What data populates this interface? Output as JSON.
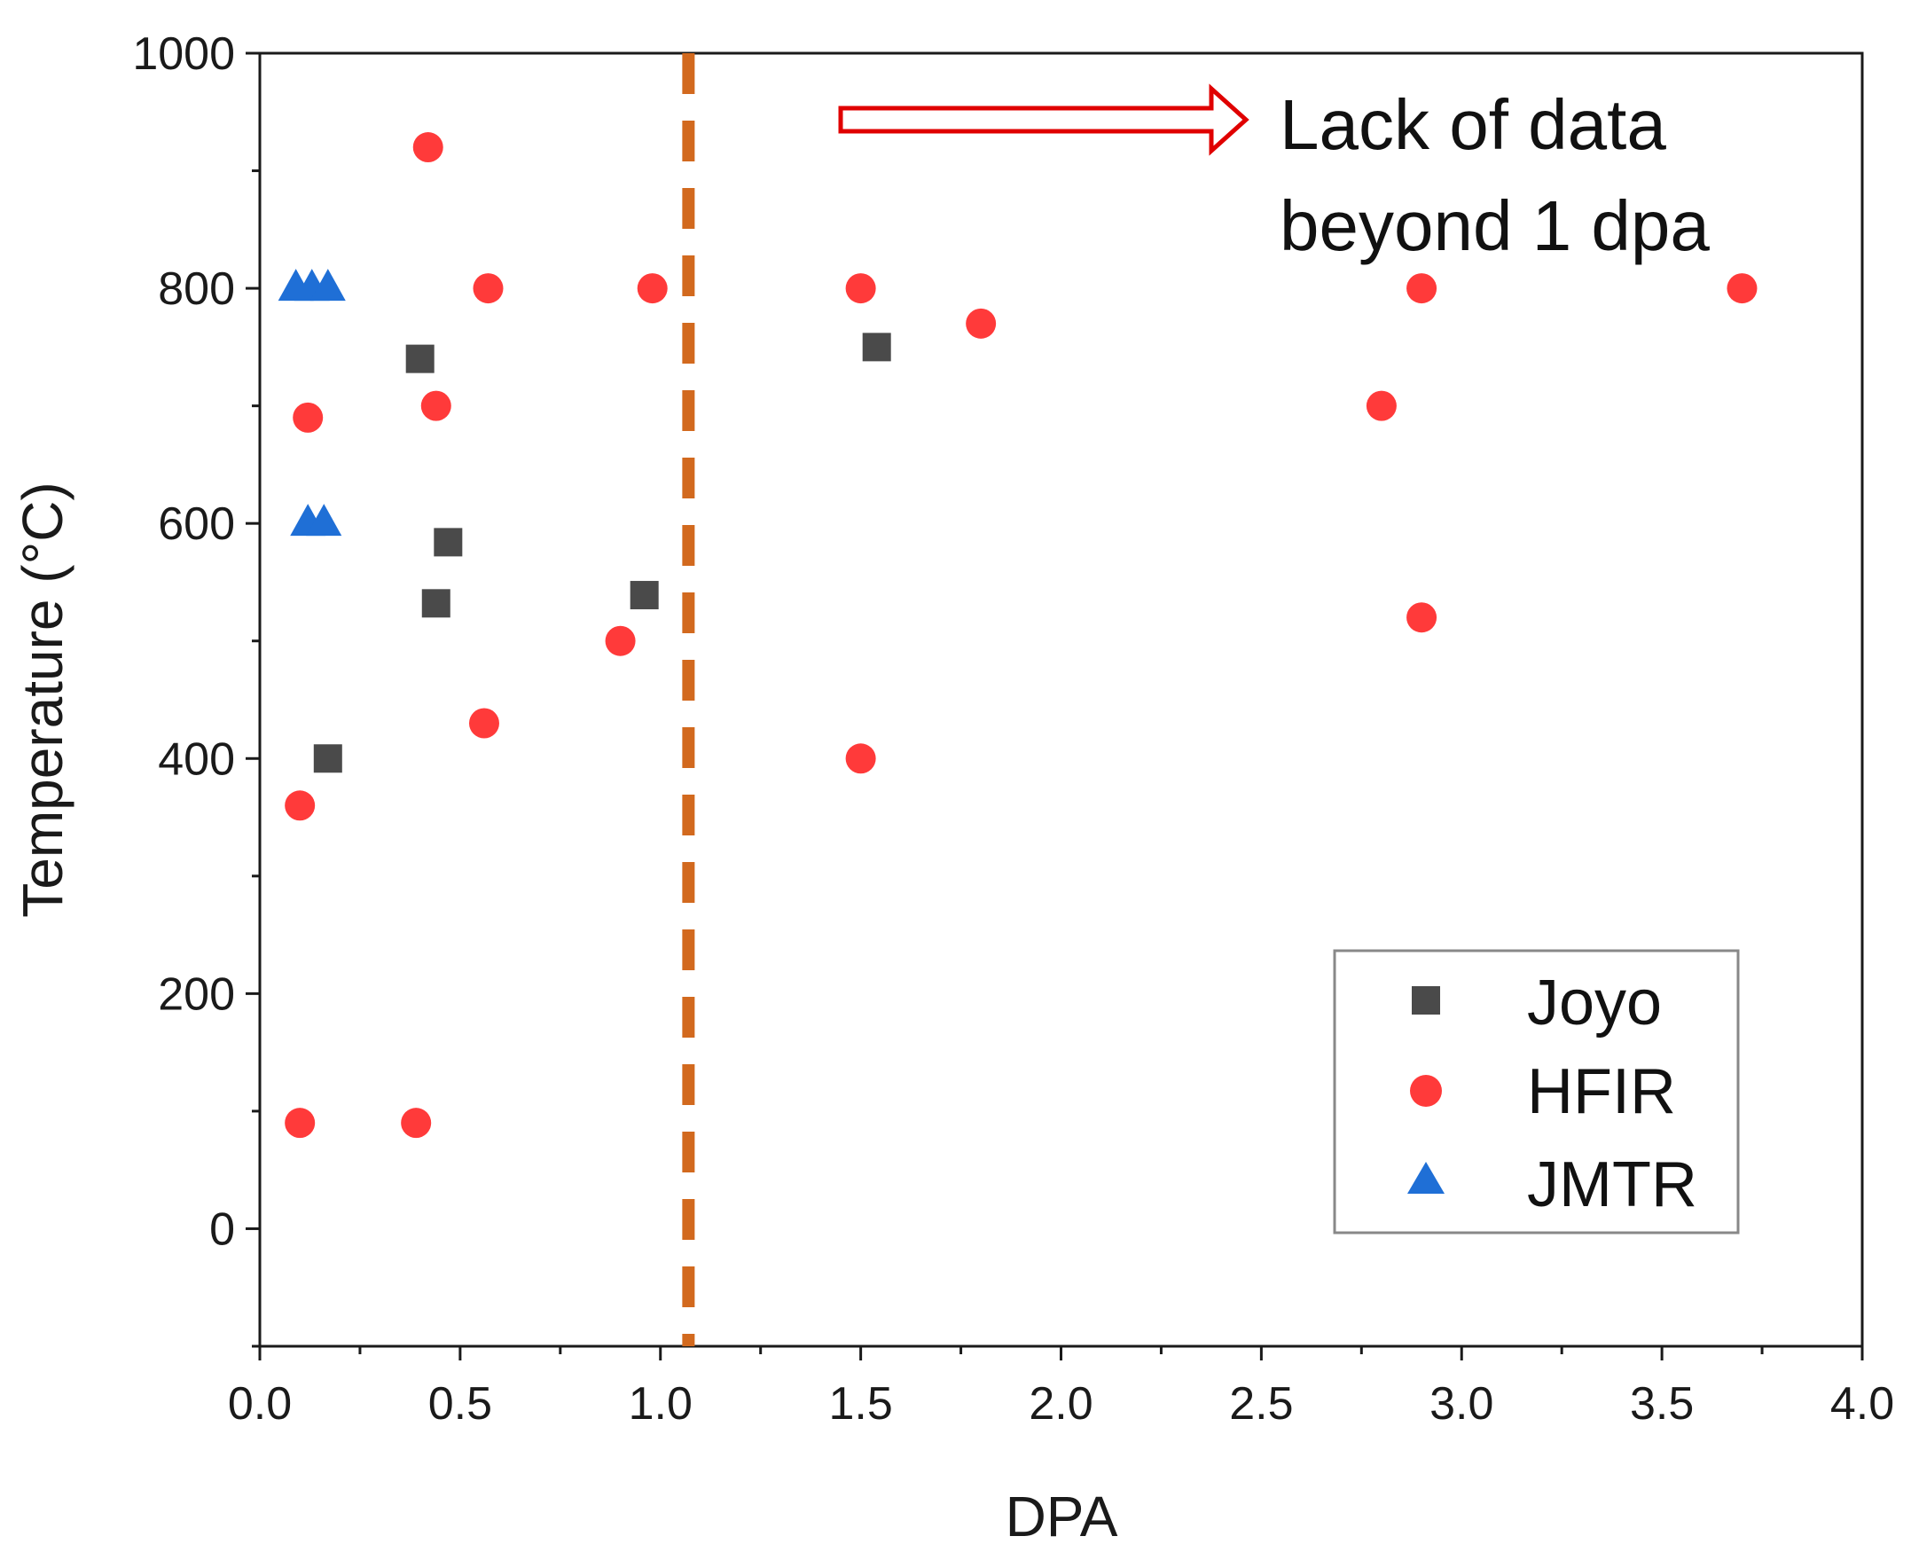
{
  "chart_data": {
    "type": "scatter",
    "title": "",
    "xlabel": "DPA",
    "ylabel": "Temperature (°C)",
    "xlim": [
      0.0,
      4.0
    ],
    "ylim": [
      -100,
      1000
    ],
    "x_ticks": [
      "0.0",
      "0.5",
      "1.0",
      "1.5",
      "2.0",
      "2.5",
      "3.0",
      "3.5",
      "4.0"
    ],
    "y_ticks": [
      "0",
      "200",
      "400",
      "600",
      "800",
      "1000"
    ],
    "grid": false,
    "legend_position": "bottom-right",
    "series": [
      {
        "name": "Joyo",
        "marker": "square",
        "color": "#4a4a4a",
        "points": [
          {
            "x": 0.17,
            "y": 400
          },
          {
            "x": 0.4,
            "y": 740
          },
          {
            "x": 0.44,
            "y": 532
          },
          {
            "x": 0.47,
            "y": 584
          },
          {
            "x": 0.96,
            "y": 539
          },
          {
            "x": 1.54,
            "y": 750
          }
        ]
      },
      {
        "name": "HFIR",
        "marker": "circle",
        "color": "#ff3a3a",
        "points": [
          {
            "x": 0.1,
            "y": 90
          },
          {
            "x": 0.1,
            "y": 360
          },
          {
            "x": 0.12,
            "y": 690
          },
          {
            "x": 0.39,
            "y": 90
          },
          {
            "x": 0.42,
            "y": 920
          },
          {
            "x": 0.44,
            "y": 700
          },
          {
            "x": 0.56,
            "y": 430
          },
          {
            "x": 0.57,
            "y": 800
          },
          {
            "x": 0.9,
            "y": 500
          },
          {
            "x": 0.98,
            "y": 800
          },
          {
            "x": 1.5,
            "y": 800
          },
          {
            "x": 1.5,
            "y": 400
          },
          {
            "x": 1.8,
            "y": 770
          },
          {
            "x": 2.8,
            "y": 700
          },
          {
            "x": 2.9,
            "y": 800
          },
          {
            "x": 2.9,
            "y": 520
          },
          {
            "x": 3.7,
            "y": 800
          }
        ]
      },
      {
        "name": "JMTR",
        "marker": "triangle",
        "color": "#1f6fd6",
        "points": [
          {
            "x": 0.09,
            "y": 800
          },
          {
            "x": 0.13,
            "y": 800
          },
          {
            "x": 0.17,
            "y": 800
          },
          {
            "x": 0.12,
            "y": 600
          },
          {
            "x": 0.16,
            "y": 600
          }
        ]
      }
    ],
    "reference_line": {
      "x": 1.07,
      "style": "dashed",
      "color": "#d2691e"
    },
    "annotation": {
      "lines": [
        "Lack of data",
        "beyond 1 dpa"
      ],
      "arrow_color": "#e00000"
    }
  }
}
